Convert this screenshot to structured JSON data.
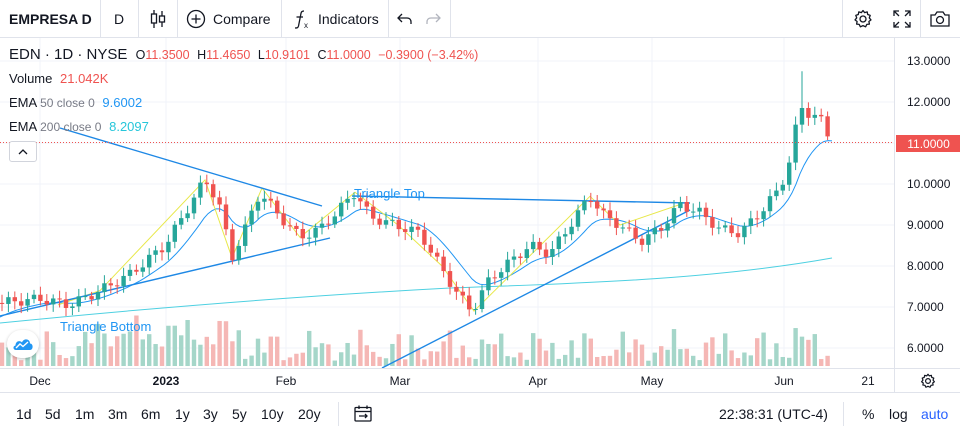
{
  "toolbar": {
    "symbol": "EMPRESA D",
    "interval": "D",
    "compare_label": "Compare",
    "indicators_label": "Indicators"
  },
  "legend": {
    "ticker": "EDN",
    "interval": "1D",
    "exchange": "NYSE",
    "open_label": "O",
    "open": "11.3500",
    "high_label": "H",
    "high": "11.4650",
    "low_label": "L",
    "low": "10.9101",
    "close_label": "C",
    "close": "11.0000",
    "change": "−0.3900 (−3.42%)",
    "volume_label": "Volume",
    "volume": "21.042K",
    "ema50_label": "EMA",
    "ema50_params": "50 close 0",
    "ema50_value": "9.6002",
    "ema200_label": "EMA",
    "ema200_params": "200 close 0",
    "ema200_value": "8.2097"
  },
  "annotations": {
    "triangle_top": "Triangle Top",
    "triangle_bottom": "Triangle Bottom"
  },
  "price_axis": {
    "labels": [
      "13.0000",
      "12.0000",
      "11.0000",
      "10.0000",
      "9.0000",
      "8.0000",
      "7.0000",
      "6.0000"
    ],
    "current": "11.0000"
  },
  "time_axis": {
    "labels": [
      "Dec",
      "2023",
      "Feb",
      "Mar",
      "Apr",
      "May",
      "Jun",
      "21"
    ]
  },
  "bottombar": {
    "ranges": [
      "1d",
      "5d",
      "1m",
      "3m",
      "6m",
      "1y",
      "3y",
      "5y",
      "10y",
      "20y"
    ],
    "clock": "22:38:31 (UTC-4)",
    "percent": "%",
    "log": "log",
    "auto": "auto"
  },
  "colors": {
    "up": "#26a69a",
    "down": "#ef5350",
    "ema50": "#2196f3",
    "ema200": "#4dd0e1",
    "trendline": "#1e88e5",
    "pattern": "#e8e84a"
  },
  "chart_data": {
    "type": "candlestick",
    "y_range": [
      5.5,
      13.4
    ],
    "series": [
      {
        "name": "EDN",
        "close_last": 11.0
      }
    ]
  }
}
